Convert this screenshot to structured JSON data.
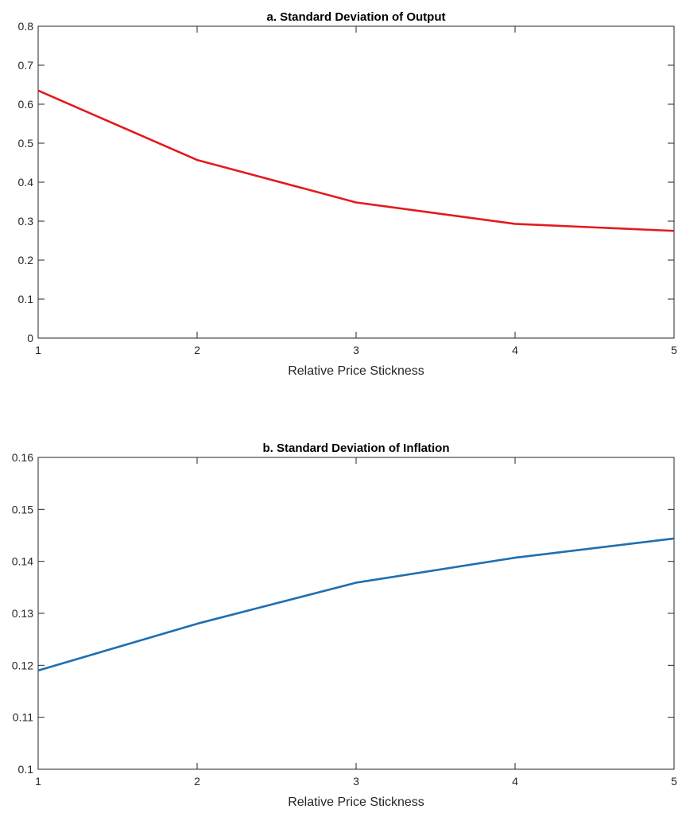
{
  "chart_data": [
    {
      "type": "line",
      "title": "a. Standard Deviation of Output",
      "xlabel": "Relative Price Stickness",
      "ylabel": "",
      "xlim": [
        1,
        5
      ],
      "ylim": [
        0,
        0.8
      ],
      "x_ticks": [
        "1",
        "2",
        "3",
        "4",
        "5"
      ],
      "y_ticks": [
        "0",
        "0.1",
        "0.2",
        "0.3",
        "0.4",
        "0.5",
        "0.6",
        "0.7",
        "0.8"
      ],
      "grid": false,
      "series": [
        {
          "color": "#e41a1c",
          "x": [
            1,
            2,
            3,
            4,
            5
          ],
          "y": [
            0.635,
            0.457,
            0.348,
            0.293,
            0.275
          ]
        }
      ]
    },
    {
      "type": "line",
      "title": "b. Standard Deviation of Inflation",
      "xlabel": "Relative Price Stickness",
      "ylabel": "",
      "xlim": [
        1,
        5
      ],
      "ylim": [
        0.1,
        0.16
      ],
      "x_ticks": [
        "1",
        "2",
        "3",
        "4",
        "5"
      ],
      "y_ticks": [
        "0.1",
        "0.11",
        "0.12",
        "0.13",
        "0.14",
        "0.15",
        "0.16"
      ],
      "grid": false,
      "series": [
        {
          "color": "#1f6fb0",
          "x": [
            1,
            2,
            3,
            4,
            5
          ],
          "y": [
            0.119,
            0.128,
            0.1359,
            0.1407,
            0.1444
          ]
        }
      ]
    }
  ]
}
